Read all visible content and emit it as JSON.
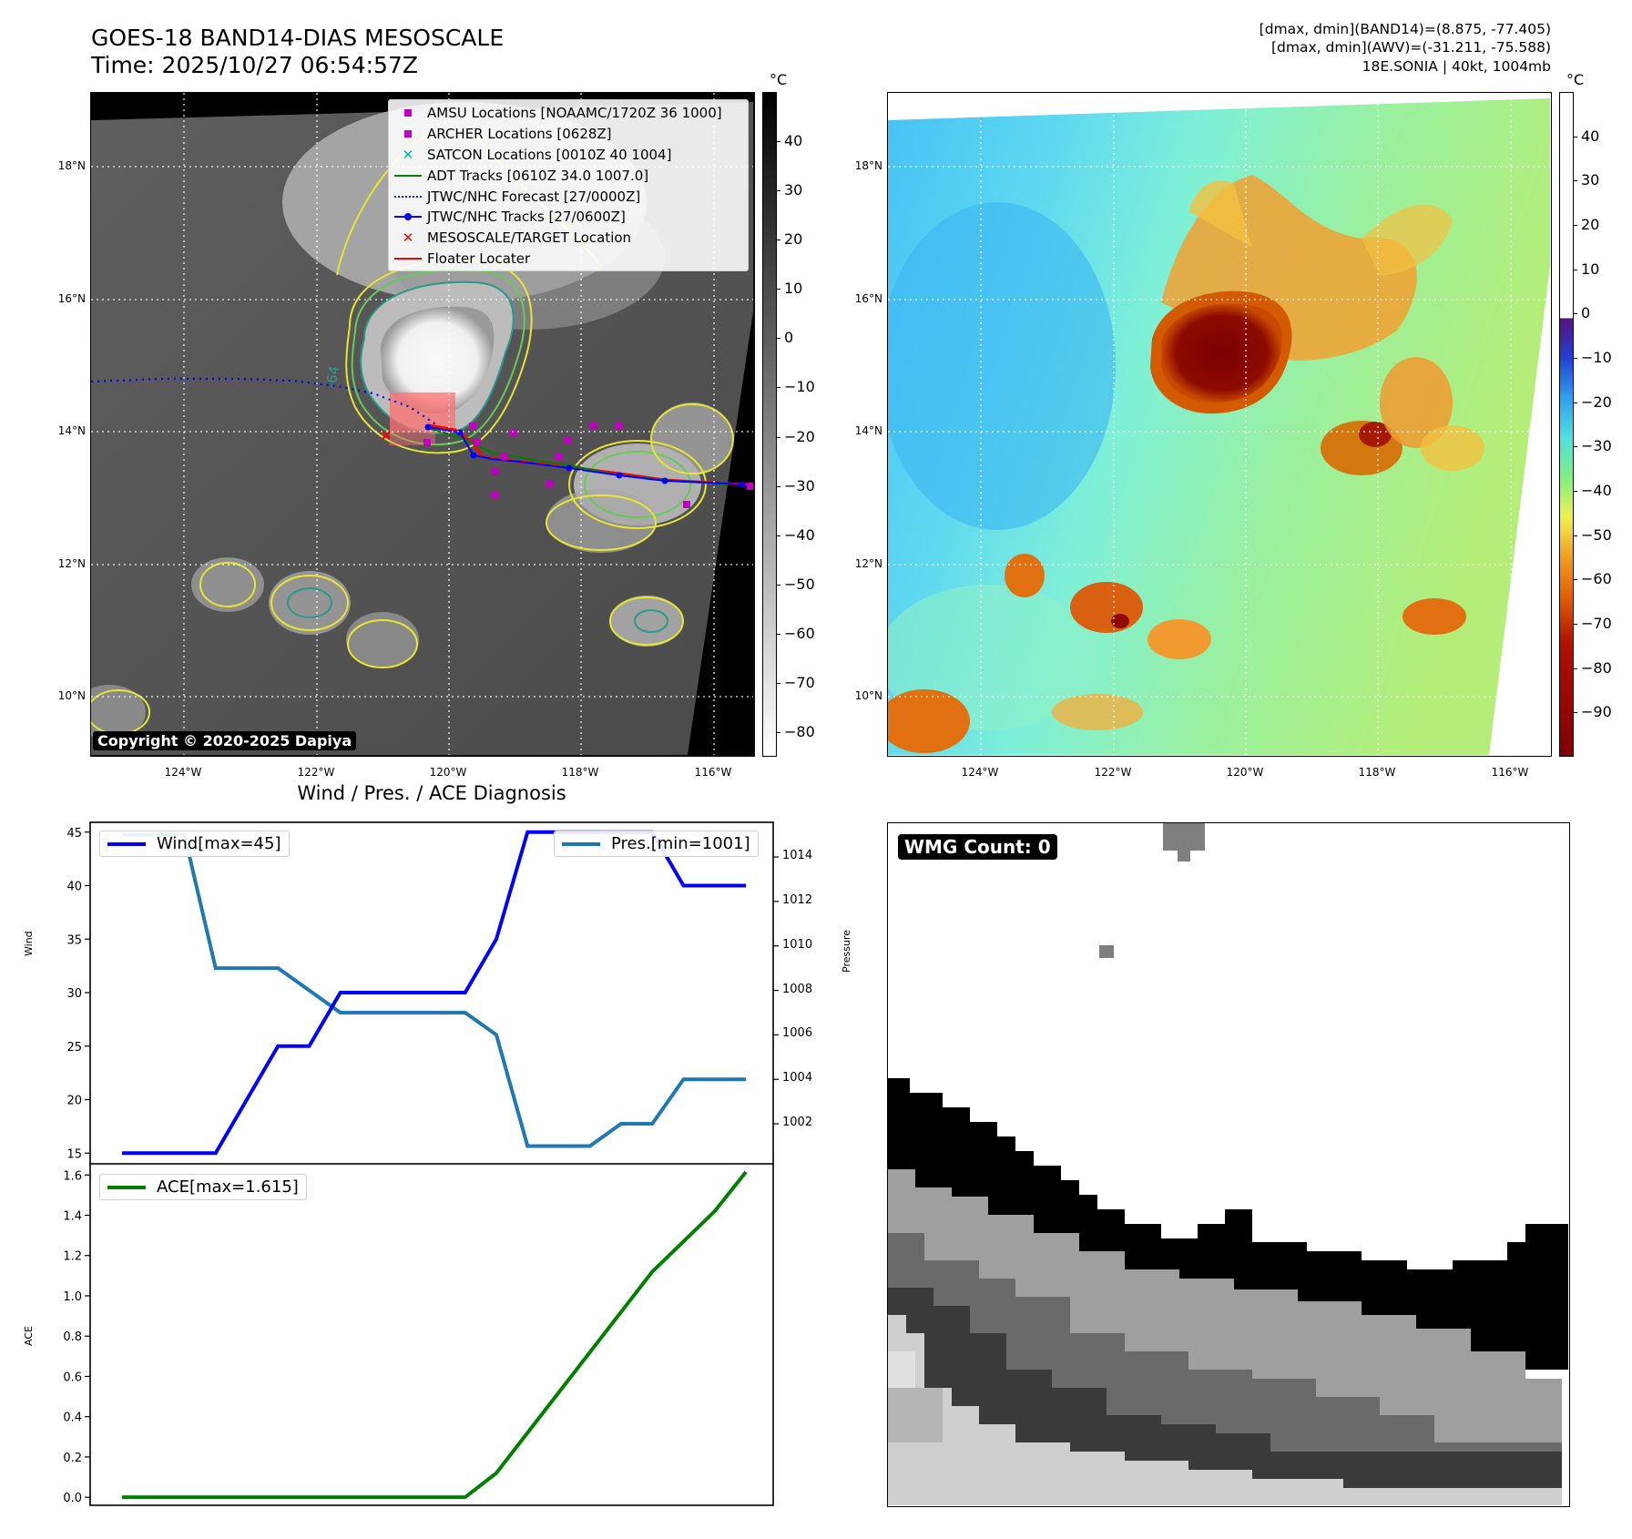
{
  "header": {
    "title_line1": "GOES-18 BAND14-DIAS MESOSCALE",
    "title_line2": "Time: 2025/10/27 06:54:57Z",
    "info_line1": "[dmax, dmin](BAND14)=(8.875, -77.405)",
    "info_line2": "[dmax, dmin](AWV)=(-31.211, -75.588)",
    "info_line3": "18E.SONIA | 40kt, 1004mb"
  },
  "map": {
    "lat_ticks": [
      "18°N",
      "16°N",
      "14°N",
      "12°N",
      "10°N"
    ],
    "lon_ticks": [
      "124°W",
      "122°W",
      "120°W",
      "118°W",
      "116°W"
    ],
    "lat_values": [
      18,
      16,
      14,
      12,
      10
    ],
    "lon_values": [
      -124,
      -122,
      -120,
      -118,
      -116
    ],
    "contour_label": "-64",
    "copyright": "Copyright © 2020-2025 Dapiya",
    "legend": [
      {
        "label": "AMSU Locations [NOAAMC/1720Z 36 1000]",
        "symbol": "square",
        "color": "#bf00bf"
      },
      {
        "label": "ARCHER Locations [0628Z]",
        "symbol": "square",
        "color": "#bf00bf"
      },
      {
        "label": "SATCON Locations [0010Z 40 1004]",
        "symbol": "x",
        "color": "#00b3b3"
      },
      {
        "label": "ADT Tracks [0610Z 34.0 1007.0]",
        "symbol": "line",
        "color": "#008000"
      },
      {
        "label": "JTWC/NHC Forecast [27/0000Z]",
        "symbol": "dotted",
        "color": "#0000ff"
      },
      {
        "label": "JTWC/NHC Tracks [27/0600Z]",
        "symbol": "line-dot",
        "color": "#0000ff"
      },
      {
        "label": "MESOSCALE/TARGET Location",
        "symbol": "x",
        "color": "#ff0000"
      },
      {
        "label": "Floater Locater",
        "symbol": "line",
        "color": "#ff0000"
      }
    ]
  },
  "colorbar_gray": {
    "unit": "°C",
    "ticks": [
      "40",
      "30",
      "20",
      "10",
      "0",
      "−10",
      "−20",
      "−30",
      "−40",
      "−50",
      "−60",
      "−70",
      "−80"
    ],
    "values": [
      40,
      30,
      20,
      10,
      0,
      -10,
      -20,
      -30,
      -40,
      -50,
      -60,
      -70,
      -80
    ],
    "range": [
      -85,
      50
    ]
  },
  "colorbar_color": {
    "unit": "°C",
    "ticks": [
      "40",
      "30",
      "20",
      "10",
      "0",
      "−10",
      "−20",
      "−30",
      "−40",
      "−50",
      "−60",
      "−70",
      "−80",
      "−90"
    ],
    "values": [
      40,
      30,
      20,
      10,
      0,
      -10,
      -20,
      -30,
      -40,
      -50,
      -60,
      -70,
      -80,
      -90
    ],
    "range": [
      -100,
      50
    ]
  },
  "chart_data": [
    {
      "type": "line",
      "title": "Wind / Pres. / ACE Diagnosis",
      "ylabel": "Wind",
      "y2label": "Pressure",
      "ylim": [
        14,
        46
      ],
      "y2lim": [
        1000.2,
        1015.6
      ],
      "yticks": [
        15,
        20,
        25,
        30,
        35,
        40,
        45
      ],
      "y2ticks": [
        1002,
        1004,
        1006,
        1008,
        1010,
        1012,
        1014
      ],
      "x": [
        0,
        1,
        2,
        3,
        4,
        5,
        6,
        7,
        8,
        9,
        10,
        11,
        12,
        13,
        14,
        15,
        16,
        17,
        18,
        19,
        20
      ],
      "series": [
        {
          "name": "Wind[max=45]",
          "axis": "left",
          "color": "#0000ff",
          "values": [
            15,
            15,
            15,
            15,
            20,
            25,
            25,
            30,
            30,
            30,
            30,
            30,
            35,
            45,
            45,
            45,
            45,
            45,
            40,
            40,
            40
          ]
        },
        {
          "name": "Pres.[min=1001]",
          "axis": "right",
          "color": "#1f77b4",
          "values": [
            1015,
            1015,
            1015,
            1009,
            1009,
            1009,
            1008,
            1007,
            1007,
            1007,
            1007,
            1007,
            1006,
            1001,
            1001,
            1001,
            1002,
            1002,
            1004,
            1004,
            1004
          ]
        }
      ]
    },
    {
      "type": "line",
      "ylabel": "ACE",
      "ylim": [
        -0.04,
        1.66
      ],
      "yticks": [
        "0.0",
        "0.2",
        "0.4",
        "0.6",
        "0.8",
        "1.0",
        "1.2",
        "1.4",
        "1.6"
      ],
      "ytick_values": [
        0,
        0.2,
        0.4,
        0.6,
        0.8,
        1.0,
        1.2,
        1.4,
        1.6
      ],
      "x": [
        0,
        1,
        2,
        3,
        4,
        5,
        6,
        7,
        8,
        9,
        10,
        11,
        12,
        13,
        14,
        15,
        16,
        17,
        18,
        19,
        20
      ],
      "series": [
        {
          "name": "ACE[max=1.615]",
          "color": "#008000",
          "values": [
            0,
            0,
            0,
            0,
            0,
            0,
            0,
            0,
            0,
            0,
            0,
            0,
            0.12,
            0.32,
            0.52,
            0.72,
            0.92,
            1.12,
            1.27,
            1.42,
            1.615
          ]
        }
      ]
    }
  ],
  "wmg": {
    "count_label": "WMG Count: 0"
  }
}
